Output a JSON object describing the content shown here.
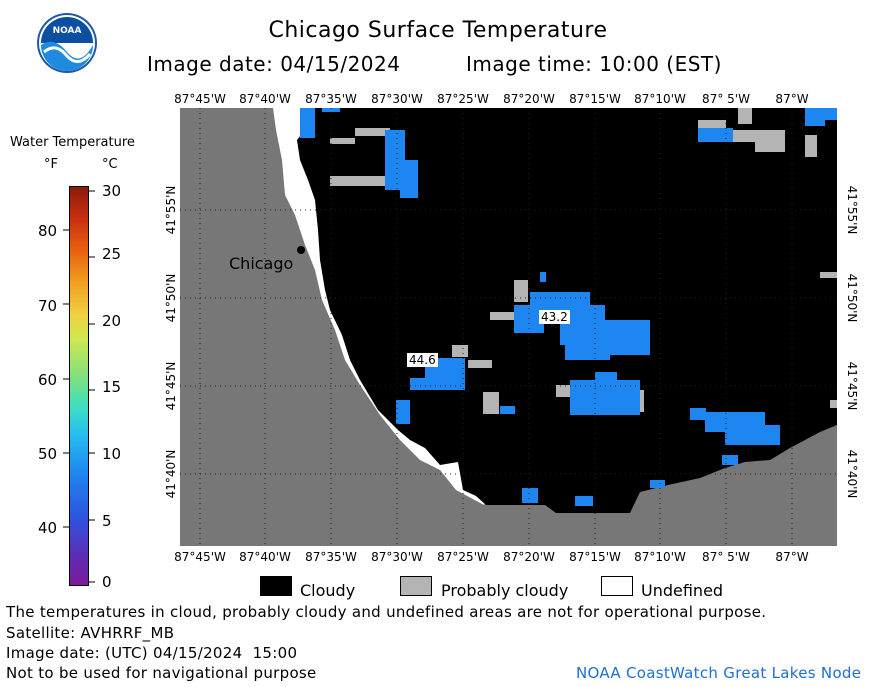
{
  "title": "Chicago Surface Temperature",
  "image_date": "Image date: 04/15/2024",
  "image_time": "Image time: 10:00 (EST)",
  "logo_text": "NOAA",
  "colorbar": {
    "title": "Water Temperature",
    "unit_f": "°F",
    "unit_c": "°C",
    "f_ticks": [
      "80",
      "70",
      "60",
      "50",
      "40"
    ],
    "c_ticks": [
      "30",
      "25",
      "20",
      "15",
      "10",
      "5",
      "0"
    ]
  },
  "map": {
    "lon_labels": [
      "87°45'W",
      "87°40'W",
      "87°35'W",
      "87°30'W",
      "87°25'W",
      "87°20'W",
      "87°15'W",
      "87°10'W",
      "87° 5'W",
      "87°W"
    ],
    "lat_labels": [
      "41°55'N",
      "41°50'N",
      "41°45'N",
      "41°40'N"
    ],
    "city_label": "Chicago",
    "temp_readouts": [
      "43.2",
      "44.6"
    ],
    "colors": {
      "land": "#777777",
      "cloudy": "#000000",
      "probably_cloudy": "#b4b4b4",
      "undefined": "#ffffff",
      "water_blue": "#1e86f0"
    }
  },
  "legend": {
    "cloudy": "Cloudy",
    "probably_cloudy": "Probably cloudy",
    "undefined": "Undefined"
  },
  "footer": {
    "disclaimer": "The temperatures in cloud, probably cloudy and undefined areas are not for operational purpose.",
    "satellite": "Satellite: AVHRRF_MB",
    "utc_date": "Image date: (UTC) 04/15/2024  15:00",
    "nav_warning": "Not to be used for navigational purpose",
    "credit": "NOAA CoastWatch Great Lakes Node"
  }
}
